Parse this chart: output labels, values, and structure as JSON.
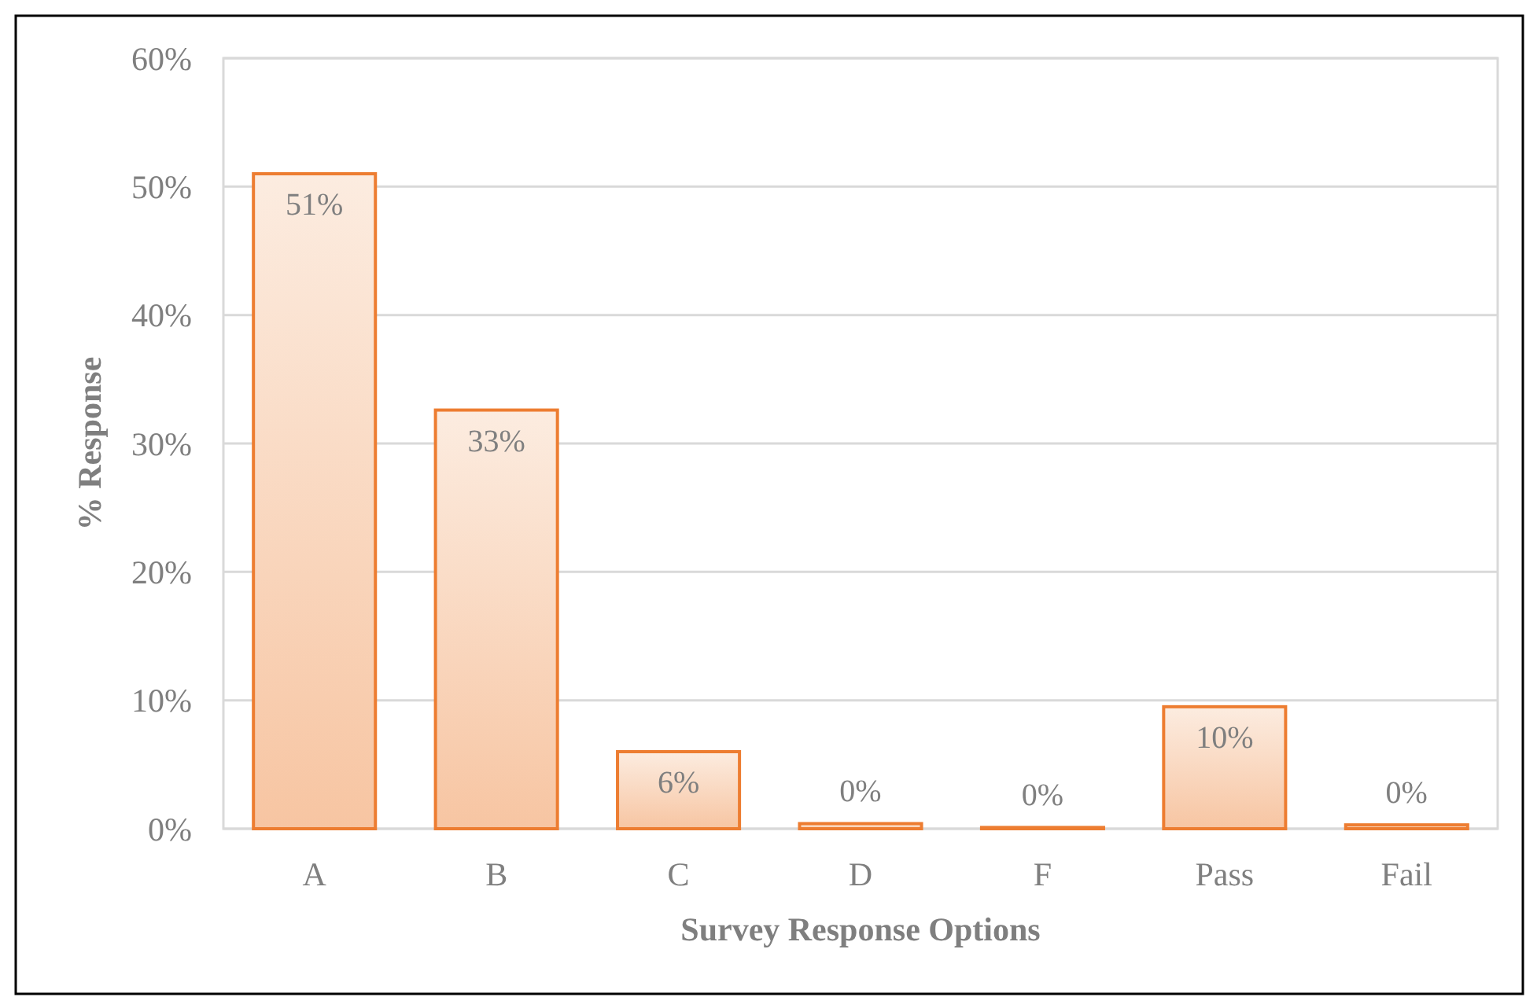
{
  "chart_data": {
    "type": "bar",
    "xlabel": "Survey Response Options",
    "ylabel": "% Response",
    "categories": [
      "A",
      "B",
      "C",
      "D",
      "F",
      "Pass",
      "Fail"
    ],
    "values": [
      51,
      32.6,
      6,
      0.4,
      0.1,
      9.5,
      0.3
    ],
    "value_labels": [
      "51%",
      "33%",
      "6%",
      "0%",
      "0%",
      "10%",
      "0%"
    ],
    "color": "#ed7d31",
    "ylim": [
      0,
      60
    ],
    "yticks": [
      {
        "value": 0,
        "label": "0%"
      },
      {
        "value": 10,
        "label": "10%"
      },
      {
        "value": 20,
        "label": "20%"
      },
      {
        "value": 30,
        "label": "30%"
      },
      {
        "value": 40,
        "label": "40%"
      },
      {
        "value": 50,
        "label": "50%"
      },
      {
        "value": 60,
        "label": "60%"
      }
    ],
    "grid": "y"
  }
}
